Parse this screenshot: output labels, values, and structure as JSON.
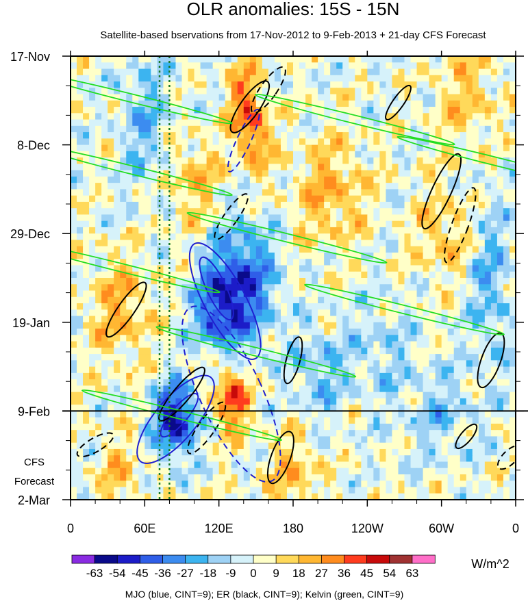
{
  "chart_data": {
    "type": "heatmap",
    "title": "OLR anomalies: 15S - 15N",
    "subtitle": "Satellite-based bservations from 17-Nov-2012 to 9-Feb-2013 + 21-day CFS Forecast",
    "x_tick_labels": [
      "0",
      "60E",
      "120E",
      "180",
      "120W",
      "60W",
      "0"
    ],
    "x_tick_lon": [
      0,
      60,
      120,
      180,
      240,
      300,
      360
    ],
    "xlim": [
      0,
      360
    ],
    "y_tick_labels": [
      "17-Nov",
      "8-Dec",
      "29-Dec",
      "19-Jan",
      "9-Feb",
      "2-Mar"
    ],
    "y_tick_day": [
      0,
      21,
      42,
      63,
      84,
      105
    ],
    "ylim": [
      0,
      105
    ],
    "observation_end_day": 84,
    "forecast_label_line1": "CFS",
    "forecast_label_line2": "Forecast",
    "reference_lon_lines": [
      72,
      80
    ],
    "colorbar_levels": [
      "-63",
      "-54",
      "-45",
      "-36",
      "-27",
      "-18",
      "-9",
      "0",
      "9",
      "18",
      "27",
      "36",
      "45",
      "54",
      "63"
    ],
    "colorbar_colors": [
      "#8a2be2",
      "#0a0a8a",
      "#1c1cc8",
      "#2f5ee8",
      "#3c8cf0",
      "#3cb4f0",
      "#9ed2f5",
      "#d6f2fa",
      "#ffffc8",
      "#ffd95a",
      "#ffb732",
      "#ff8c1e",
      "#ff3c1e",
      "#c80a0a",
      "#a03232",
      "#ff6ec8"
    ],
    "units": "W/m^2",
    "footer": "MJO (blue, CINT=9); ER (black, CINT=9); Kelvin (green, CINT=9)",
    "contour_colors": {
      "mjo": "#1f1fd0",
      "er": "#000000",
      "kelvin": "#22dd22",
      "ref_lines": "#1a7a2a"
    }
  }
}
